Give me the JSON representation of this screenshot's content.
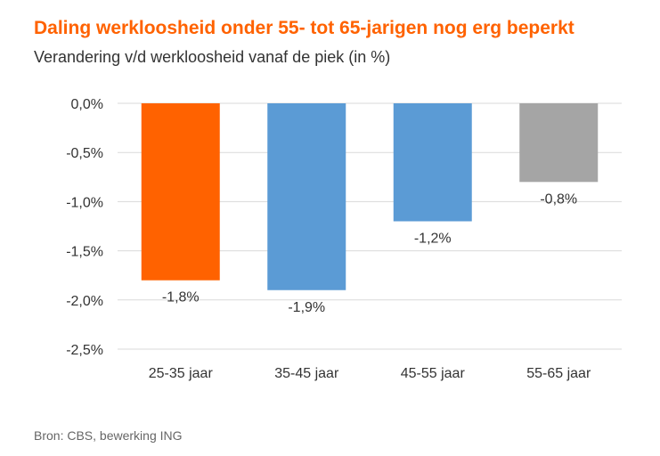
{
  "header": {
    "title": "Daling werkloosheid onder 55- tot 65-jarigen nog erg beperkt",
    "subtitle": "Verandering v/d werkloosheid vanaf de piek (in %)"
  },
  "footer": {
    "source": "Bron: CBS, bewerking ING"
  },
  "chart_data": {
    "type": "bar",
    "title": "Daling werkloosheid onder 55- tot 65-jarigen nog erg beperkt",
    "subtitle": "Verandering v/d werkloosheid vanaf de piek (in %)",
    "categories": [
      "25-35 jaar",
      "35-45 jaar",
      "45-55 jaar",
      "55-65 jaar"
    ],
    "values": [
      -1.8,
      -1.9,
      -1.2,
      -0.8
    ],
    "data_labels": [
      "-1,8%",
      "-1,9%",
      "-1,2%",
      "-0,8%"
    ],
    "colors": [
      "#ff6200",
      "#5b9bd5",
      "#5b9bd5",
      "#a5a5a5"
    ],
    "ylim": [
      -2.5,
      0
    ],
    "yticks": [
      0,
      -0.5,
      -1.0,
      -1.5,
      -2.0,
      -2.5
    ],
    "ytick_labels": [
      "0,0%",
      "-0,5%",
      "-1,0%",
      "-1,5%",
      "-2,0%",
      "-2,5%"
    ],
    "xlabel": "",
    "ylabel": "",
    "grid": true,
    "gridline_color": "#d9d9d9",
    "legend": "none"
  }
}
